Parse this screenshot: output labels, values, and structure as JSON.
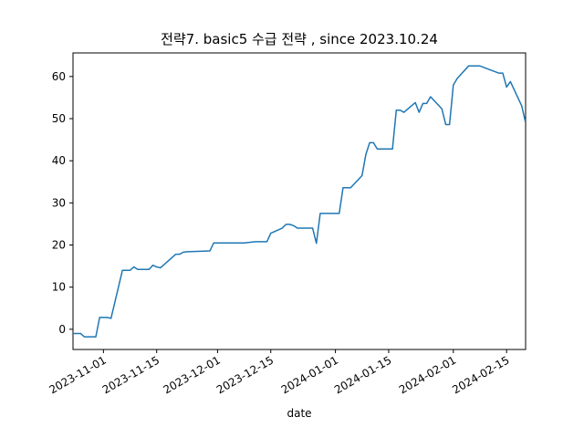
{
  "chart_data": {
    "type": "line",
    "title": "전략7. basic5 수급 전략 , since 2023.10.24",
    "xlabel": "date",
    "color": "#1f77b4",
    "x": [
      "2023-10-24",
      "2023-10-26",
      "2023-10-27",
      "2023-10-30",
      "2023-10-31",
      "2023-11-02",
      "2023-11-03",
      "2023-11-06",
      "2023-11-08",
      "2023-11-09",
      "2023-11-10",
      "2023-11-13",
      "2023-11-14",
      "2023-11-15",
      "2023-11-16",
      "2023-11-20",
      "2023-11-21",
      "2023-11-22",
      "2023-11-23",
      "2023-11-29",
      "2023-11-30",
      "2023-12-08",
      "2023-12-11",
      "2023-12-14",
      "2023-12-15",
      "2023-12-18",
      "2023-12-19",
      "2023-12-20",
      "2023-12-21",
      "2023-12-22",
      "2023-12-26",
      "2023-12-27",
      "2023-12-28",
      "2024-01-02",
      "2024-01-03",
      "2024-01-05",
      "2024-01-08",
      "2024-01-09",
      "2024-01-10",
      "2024-01-11",
      "2024-01-12",
      "2024-01-16",
      "2024-01-17",
      "2024-01-18",
      "2024-01-19",
      "2024-01-22",
      "2024-01-23",
      "2024-01-24",
      "2024-01-25",
      "2024-01-26",
      "2024-01-29",
      "2024-01-30",
      "2024-01-31",
      "2024-02-01",
      "2024-02-02",
      "2024-02-05",
      "2024-02-08",
      "2024-02-13",
      "2024-02-14",
      "2024-02-15",
      "2024-02-16",
      "2024-02-19",
      "2024-02-20"
    ],
    "values": [
      -1.0,
      -1.0,
      -1.8,
      -1.8,
      2.8,
      2.8,
      2.6,
      14.0,
      14.0,
      14.8,
      14.2,
      14.2,
      15.2,
      14.8,
      14.6,
      17.8,
      17.8,
      18.3,
      18.4,
      18.6,
      20.5,
      20.5,
      20.8,
      20.8,
      22.8,
      24.0,
      24.9,
      24.9,
      24.6,
      24.0,
      24.0,
      20.4,
      27.5,
      27.5,
      33.6,
      33.6,
      36.5,
      41.5,
      44.3,
      44.3,
      42.8,
      42.8,
      52.0,
      52.0,
      51.5,
      53.8,
      51.5,
      53.6,
      53.6,
      55.2,
      52.3,
      48.6,
      48.6,
      58.0,
      59.5,
      62.5,
      62.5,
      60.8,
      60.8,
      57.5,
      58.8,
      53.0,
      49.0
    ],
    "xlim": [
      "2023-10-24",
      "2024-02-20"
    ],
    "xticks": [
      "2023-11-01",
      "2023-11-15",
      "2023-12-01",
      "2023-12-15",
      "2024-01-01",
      "2024-01-15",
      "2024-02-01",
      "2024-02-15"
    ],
    "ylim": [
      -4.8,
      65.6
    ],
    "yticks": [
      0,
      10,
      20,
      30,
      40,
      50,
      60
    ]
  }
}
